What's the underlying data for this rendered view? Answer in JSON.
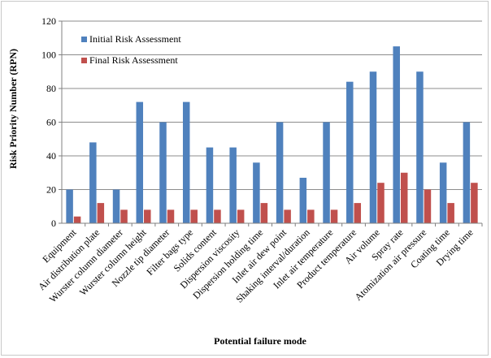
{
  "chart_data": {
    "type": "bar",
    "categories": [
      "Equipment",
      "Air distribution plate",
      "Wurster column diameter",
      "Wurster column height",
      "Nozzle tip diameter",
      "Filter bags type",
      "Solids content",
      "Dispersion viscosity",
      "Dispersion holding time",
      "Inlet air dew point",
      "Shaking interval/duration",
      "Inlet air temperature",
      "Product temperature",
      "Air volume",
      "Spray rate",
      "Atomization air pressure",
      "Coating time",
      "Drying time"
    ],
    "series": [
      {
        "name": "Initial Risk Assessment",
        "color": "#4F81BD",
        "values": [
          20,
          48,
          20,
          72,
          60,
          72,
          45,
          45,
          36,
          60,
          27,
          60,
          84,
          90,
          105,
          90,
          36,
          60
        ]
      },
      {
        "name": "Final Risk Assessment",
        "color": "#C0504D",
        "values": [
          4,
          12,
          8,
          8,
          8,
          8,
          8,
          8,
          12,
          8,
          8,
          8,
          12,
          24,
          30,
          20,
          12,
          24
        ]
      }
    ],
    "xlabel": "Potential failure mode",
    "ylabel": "Risk Priority Number (RPN)",
    "ylim": [
      0,
      120
    ],
    "yticks": [
      0,
      20,
      40,
      60,
      80,
      100,
      120
    ],
    "grid": true,
    "legend_position": "top-left"
  }
}
